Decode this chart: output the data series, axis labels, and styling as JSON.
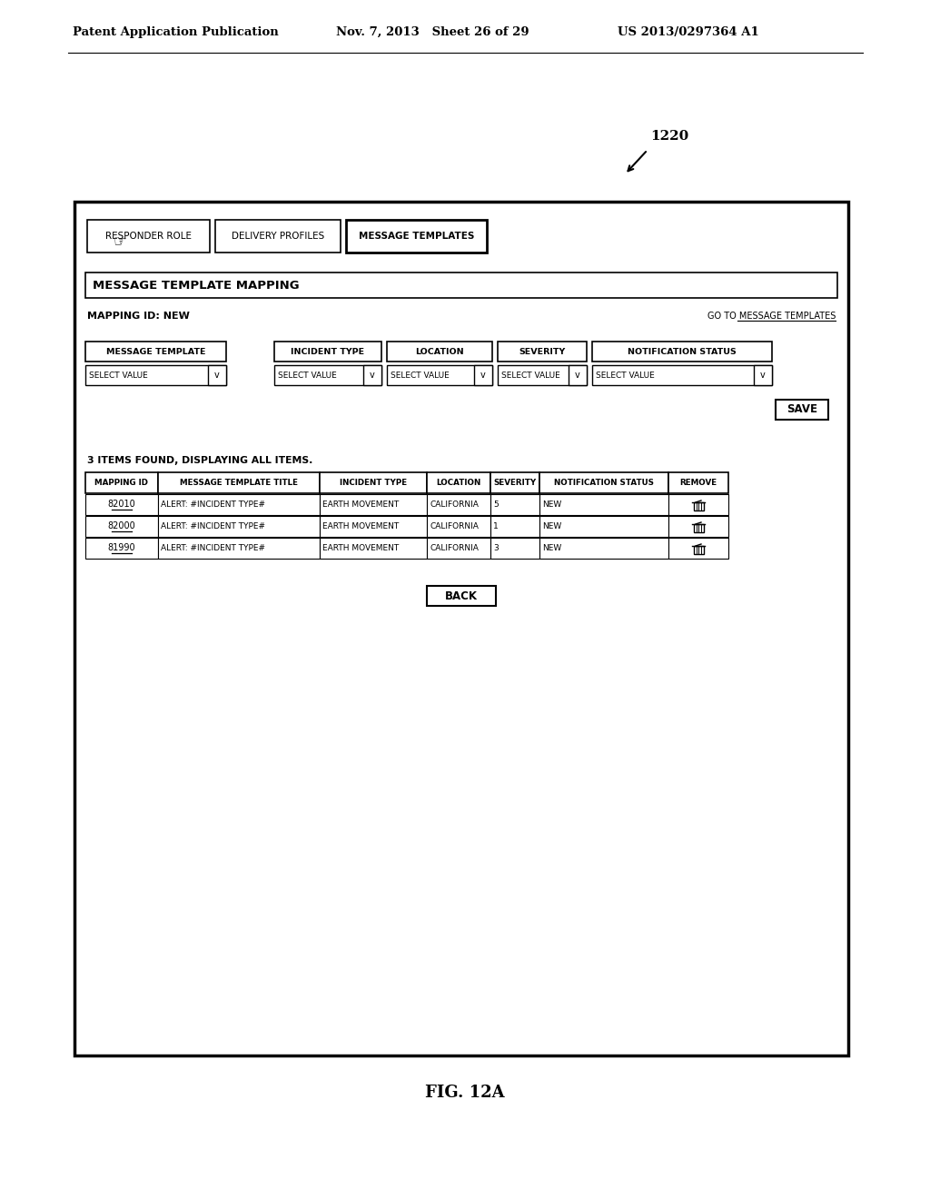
{
  "background_color": "#ffffff",
  "header_left": "Patent Application Publication",
  "header_mid": "Nov. 7, 2013   Sheet 26 of 29",
  "header_right": "US 2013/0297364 A1",
  "figure_label": "FIG. 12A",
  "reference_number": "1220",
  "tab_labels": [
    "RESPONDER ROLE",
    "DELIVERY PROFILES",
    "MESSAGE TEMPLATES"
  ],
  "active_tab": 2,
  "section_title": "MESSAGE TEMPLATE MAPPING",
  "mapping_id_label": "MAPPING ID: NEW",
  "goto_label": "GO TO MESSAGE TEMPLATES",
  "form_headers": [
    "MESSAGE TEMPLATE",
    "INCIDENT TYPE",
    "LOCATION",
    "SEVERITY",
    "NOTIFICATION STATUS"
  ],
  "form_values": [
    "SELECT VALUE",
    "SELECT VALUE",
    "SELECT VALUE",
    "SELECT VALUE",
    "SELECT VALUE"
  ],
  "save_button": "SAVE",
  "items_found": "3 ITEMS FOUND, DISPLAYING ALL ITEMS.",
  "table_headers": [
    "MAPPING ID",
    "MESSAGE TEMPLATE TITLE",
    "INCIDENT TYPE",
    "LOCATION",
    "SEVERITY",
    "NOTIFICATION STATUS",
    "REMOVE"
  ],
  "table_rows": [
    [
      "82010",
      "ALERT: #INCIDENT TYPE#",
      "EARTH MOVEMENT",
      "CALIFORNIA",
      "5",
      "NEW"
    ],
    [
      "82000",
      "ALERT: #INCIDENT TYPE#",
      "EARTH MOVEMENT",
      "CALIFORNIA",
      "1",
      "NEW"
    ],
    [
      "81990",
      "ALERT: #INCIDENT TYPE#",
      "EARTH MOVEMENT",
      "CALIFORNIA",
      "3",
      "NEW"
    ]
  ],
  "back_button": "BACK",
  "font_size_header": 9,
  "font_size_body": 7.5,
  "font_size_title": 10
}
